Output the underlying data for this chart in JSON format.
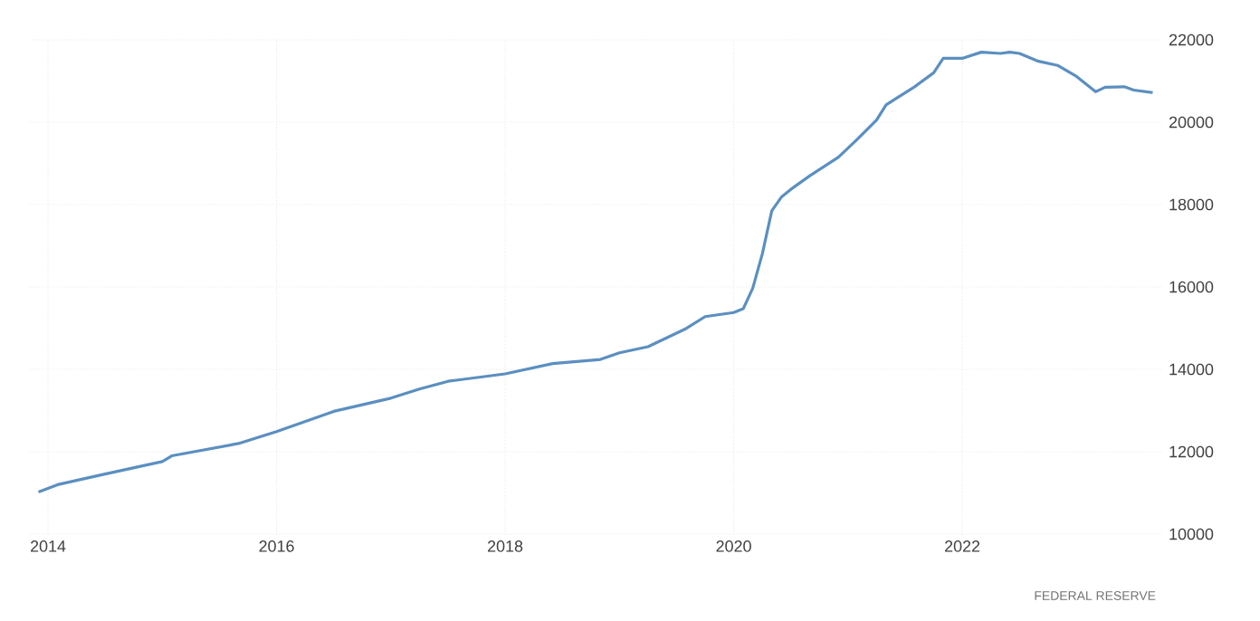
{
  "chart_data": {
    "type": "line",
    "x": [
      "2013-12",
      "2014-02",
      "2014-07",
      "2015-01",
      "2015-02",
      "2015-09",
      "2016-01",
      "2016-07",
      "2017-01",
      "2017-04",
      "2017-07",
      "2018-01",
      "2018-06",
      "2018-11",
      "2019-01",
      "2019-04",
      "2019-06",
      "2019-08",
      "2019-10",
      "2020-01",
      "2020-02",
      "2020-03",
      "2020-04",
      "2020-05",
      "2020-06",
      "2020-07",
      "2020-09",
      "2020-12",
      "2021-02",
      "2021-04",
      "2021-05",
      "2021-06",
      "2021-08",
      "2021-10",
      "2021-11",
      "2022-01",
      "2022-03",
      "2022-05",
      "2022-06",
      "2022-07",
      "2022-09",
      "2022-11",
      "2023-01",
      "2023-03",
      "2023-04",
      "2023-06",
      "2023-07",
      "2023-09"
    ],
    "series": [
      {
        "color": "#5b8fc0",
        "values": [
          11020,
          11200,
          11460,
          11760,
          11900,
          12200,
          12490,
          12980,
          13300,
          13520,
          13710,
          13890,
          14140,
          14240,
          14400,
          14550,
          14770,
          14990,
          15280,
          15380,
          15470,
          15970,
          16800,
          17850,
          18180,
          18370,
          18700,
          19150,
          19590,
          20050,
          20420,
          20570,
          20860,
          21200,
          21550,
          21550,
          21700,
          21670,
          21700,
          21670,
          21480,
          21380,
          21110,
          20740,
          20850,
          20860,
          20780,
          20720
        ]
      }
    ],
    "xlim": [
      "2013-11",
      "2023-10"
    ],
    "xticks": [
      "2014",
      "2016",
      "2018",
      "2020",
      "2022"
    ],
    "ylim": [
      10000,
      22000
    ],
    "yticks": [
      10000,
      12000,
      14000,
      16000,
      18000,
      20000,
      22000
    ],
    "grid": true,
    "marker": "none",
    "line_style": "solid",
    "annotations": [
      "FEDERAL RESERVE"
    ]
  }
}
